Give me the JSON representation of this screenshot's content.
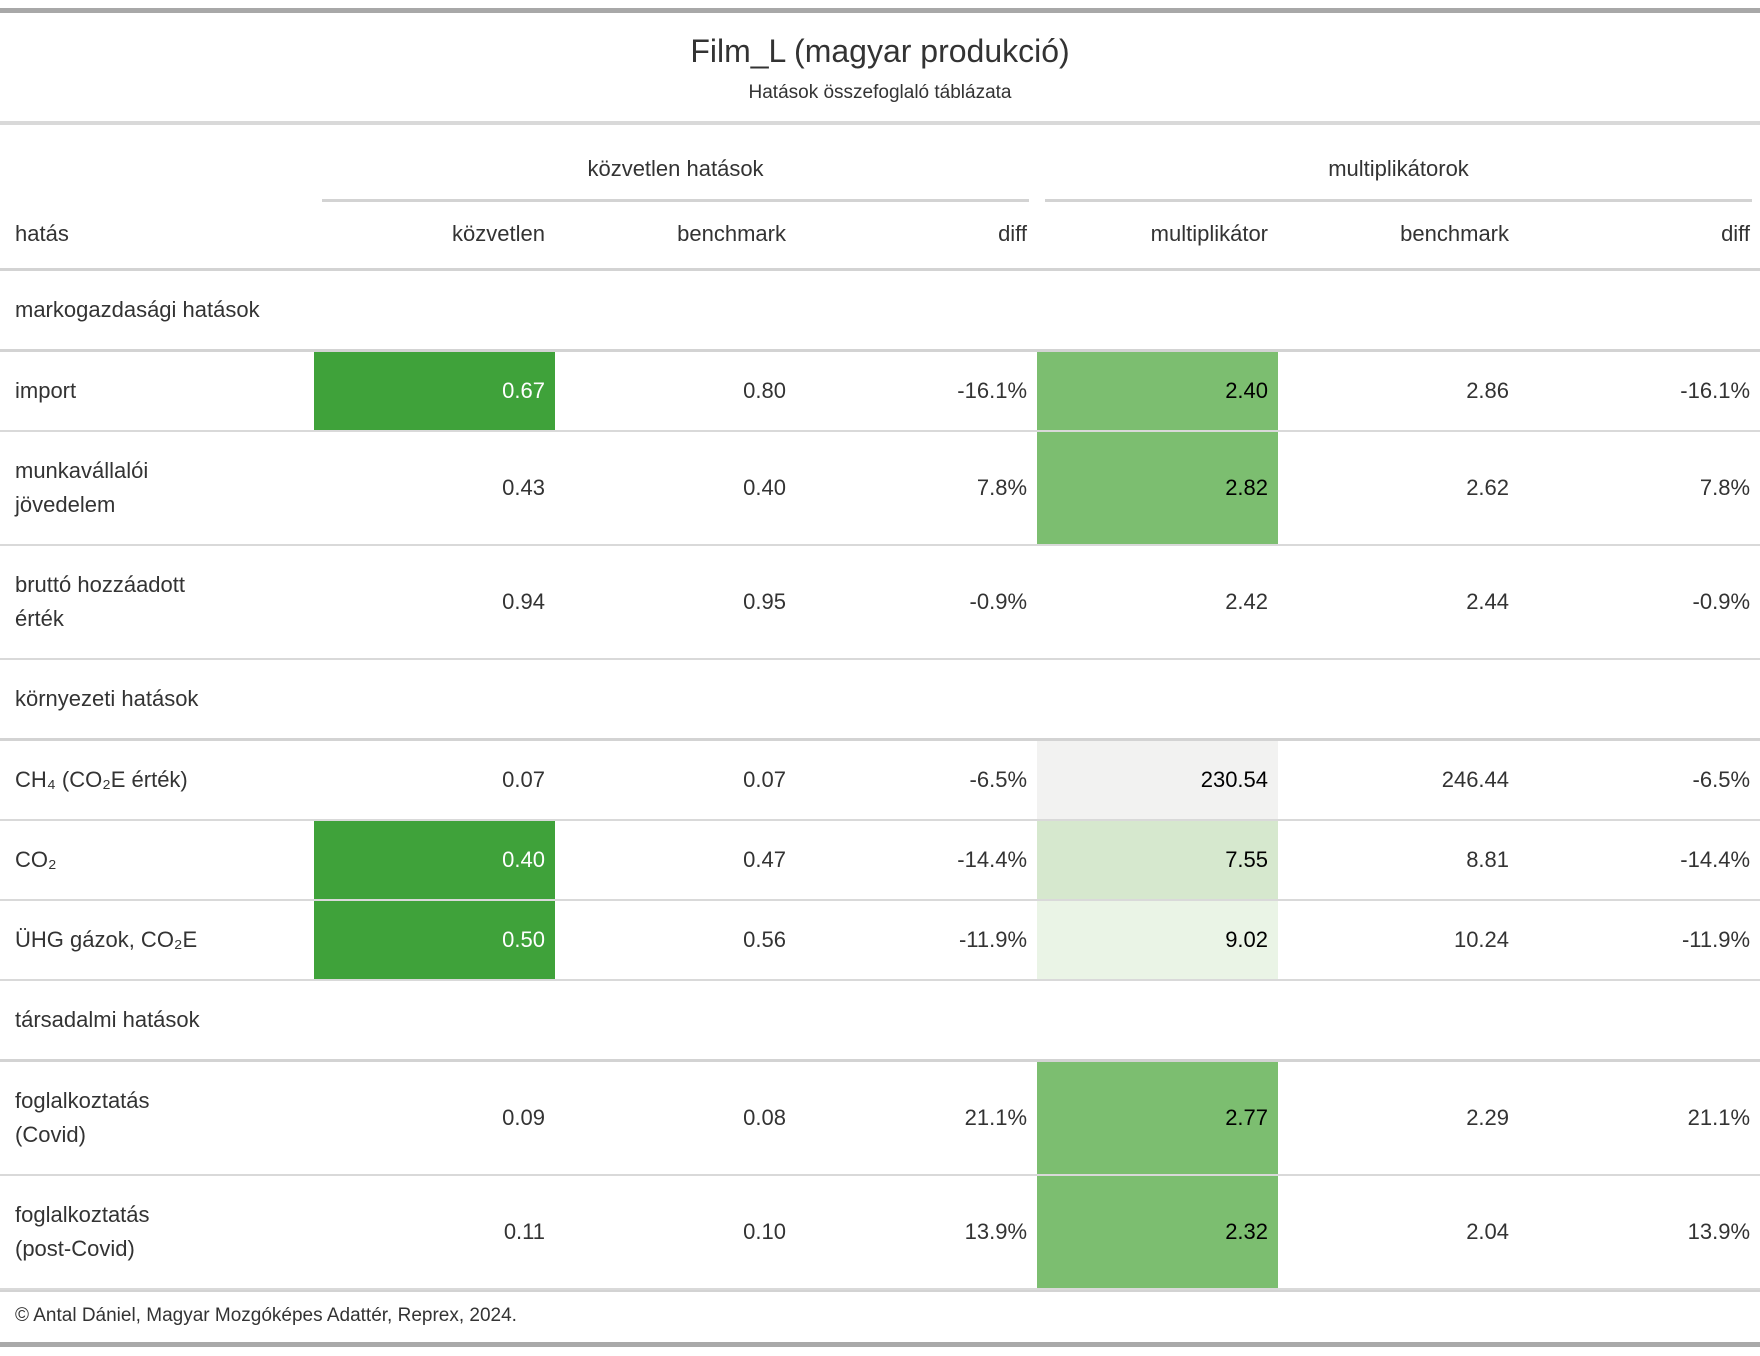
{
  "colors": {
    "fill_strong_green": "#3FA23A",
    "fill_medium_green": "#7CBE70",
    "fill_light_green": "#D6E8CE",
    "fill_faint_green": "#EAF4E6",
    "fill_light_gray": "#F2F2F1",
    "border_outer": "#A8A8A8",
    "border_inner": "#D3D3D3",
    "text_body": "#333333",
    "text_on_dark_fill": "#FFFFFF"
  },
  "table": {
    "title": "Film_L (magyar produkció)",
    "subtitle": "Hatások összefoglaló táblázata",
    "spanners": [
      "közvetlen hatások",
      "multiplikátorok"
    ],
    "columns": [
      "hatás",
      "közvetlen",
      "benchmark",
      "diff",
      "multiplikátor",
      "benchmark",
      "diff"
    ],
    "groups": [
      {
        "label": "markogazdasági hatások",
        "rows": [
          {
            "label": "import",
            "values": [
              "0.67",
              "0.80",
              "-16.1%",
              "2.40",
              "2.86",
              "-16.1%"
            ],
            "fills": [
              {
                "col": 0,
                "bg": "#3FA23A",
                "fg": "#FFFFFF"
              },
              {
                "col": 3,
                "bg": "#7CBE70",
                "fg": "#000000"
              }
            ]
          },
          {
            "label": "munkavállalói\njövedelem",
            "values": [
              "0.43",
              "0.40",
              "7.8%",
              "2.82",
              "2.62",
              "7.8%"
            ],
            "fills": [
              {
                "col": 3,
                "bg": "#7CBE70",
                "fg": "#000000"
              }
            ]
          },
          {
            "label": "bruttó hozzáadott\nérték",
            "values": [
              "0.94",
              "0.95",
              "-0.9%",
              "2.42",
              "2.44",
              "-0.9%"
            ],
            "fills": []
          }
        ]
      },
      {
        "label": "környezeti hatások",
        "rows": [
          {
            "label": "CH₄ (CO₂E érték)",
            "values": [
              "0.07",
              "0.07",
              "-6.5%",
              "230.54",
              "246.44",
              "-6.5%"
            ],
            "fills": [
              {
                "col": 3,
                "bg": "#F2F2F1",
                "fg": "#000000"
              }
            ]
          },
          {
            "label": "CO₂",
            "values": [
              "0.40",
              "0.47",
              "-14.4%",
              "7.55",
              "8.81",
              "-14.4%"
            ],
            "fills": [
              {
                "col": 0,
                "bg": "#3FA23A",
                "fg": "#FFFFFF"
              },
              {
                "col": 3,
                "bg": "#D6E8CE",
                "fg": "#000000"
              }
            ]
          },
          {
            "label": "ÜHG gázok, CO₂E",
            "values": [
              "0.50",
              "0.56",
              "-11.9%",
              "9.02",
              "10.24",
              "-11.9%"
            ],
            "fills": [
              {
                "col": 0,
                "bg": "#3FA23A",
                "fg": "#FFFFFF"
              },
              {
                "col": 3,
                "bg": "#EAF4E6",
                "fg": "#000000"
              }
            ]
          }
        ]
      },
      {
        "label": "társadalmi hatások",
        "rows": [
          {
            "label": "foglalkoztatás\n(Covid)",
            "values": [
              "0.09",
              "0.08",
              "21.1%",
              "2.77",
              "2.29",
              "21.1%"
            ],
            "fills": [
              {
                "col": 3,
                "bg": "#7CBE70",
                "fg": "#000000"
              }
            ]
          },
          {
            "label": "foglalkoztatás\n(post-Covid)",
            "values": [
              "0.11",
              "0.10",
              "13.9%",
              "2.32",
              "2.04",
              "13.9%"
            ],
            "fills": [
              {
                "col": 3,
                "bg": "#7CBE70",
                "fg": "#000000"
              }
            ]
          }
        ]
      }
    ],
    "footer": "© Antal Dániel, Magyar Mozgóképes Adattér, Reprex, 2024."
  },
  "chart_data": {
    "type": "table",
    "title": "Film_L (magyar produkció)",
    "subtitle": "Hatások összefoglaló táblázata",
    "column_spanners": [
      {
        "label": "közvetlen hatások",
        "columns": [
          "közvetlen",
          "benchmark",
          "diff"
        ]
      },
      {
        "label": "multiplikátorok",
        "columns": [
          "multiplikátor",
          "benchmark",
          "diff"
        ]
      }
    ],
    "columns": [
      "hatás",
      "közvetlen",
      "benchmark (közvetlen)",
      "diff (közvetlen)",
      "multiplikátor",
      "benchmark (multiplikátor)",
      "diff (multiplikátor)"
    ],
    "rows": [
      {
        "group": "markogazdasági hatások",
        "hatás": "import",
        "közvetlen": 0.67,
        "benchmark_közvetlen": 0.8,
        "diff_közvetlen_pct": -16.1,
        "multiplikátor": 2.4,
        "benchmark_multiplikátor": 2.86,
        "diff_multiplikátor_pct": -16.1
      },
      {
        "group": "markogazdasági hatások",
        "hatás": "munkavállalói jövedelem",
        "közvetlen": 0.43,
        "benchmark_közvetlen": 0.4,
        "diff_közvetlen_pct": 7.8,
        "multiplikátor": 2.82,
        "benchmark_multiplikátor": 2.62,
        "diff_multiplikátor_pct": 7.8
      },
      {
        "group": "markogazdasági hatások",
        "hatás": "bruttó hozzáadott érték",
        "közvetlen": 0.94,
        "benchmark_közvetlen": 0.95,
        "diff_közvetlen_pct": -0.9,
        "multiplikátor": 2.42,
        "benchmark_multiplikátor": 2.44,
        "diff_multiplikátor_pct": -0.9
      },
      {
        "group": "környezeti hatások",
        "hatás": "CH₄ (CO₂E érték)",
        "közvetlen": 0.07,
        "benchmark_közvetlen": 0.07,
        "diff_közvetlen_pct": -6.5,
        "multiplikátor": 230.54,
        "benchmark_multiplikátor": 246.44,
        "diff_multiplikátor_pct": -6.5
      },
      {
        "group": "környezeti hatások",
        "hatás": "CO₂",
        "közvetlen": 0.4,
        "benchmark_közvetlen": 0.47,
        "diff_közvetlen_pct": -14.4,
        "multiplikátor": 7.55,
        "benchmark_multiplikátor": 8.81,
        "diff_multiplikátor_pct": -14.4
      },
      {
        "group": "környezeti hatások",
        "hatás": "ÜHG gázok, CO₂E",
        "közvetlen": 0.5,
        "benchmark_közvetlen": 0.56,
        "diff_közvetlen_pct": -11.9,
        "multiplikátor": 9.02,
        "benchmark_multiplikátor": 10.24,
        "diff_multiplikátor_pct": -11.9
      },
      {
        "group": "társadalmi hatások",
        "hatás": "foglalkoztatás (Covid)",
        "közvetlen": 0.09,
        "benchmark_közvetlen": 0.08,
        "diff_közvetlen_pct": 21.1,
        "multiplikátor": 2.77,
        "benchmark_multiplikátor": 2.29,
        "diff_multiplikátor_pct": 21.1
      },
      {
        "group": "társadalmi hatások",
        "hatás": "foglalkoztatás (post-Covid)",
        "közvetlen": 0.11,
        "benchmark_közvetlen": 0.1,
        "diff_közvetlen_pct": 13.9,
        "multiplikátor": 2.32,
        "benchmark_multiplikátor": 2.04,
        "diff_multiplikátor_pct": 13.9
      }
    ],
    "source_note": "© Antal Dániel, Magyar Mozgóképes Adattér, Reprex, 2024."
  }
}
